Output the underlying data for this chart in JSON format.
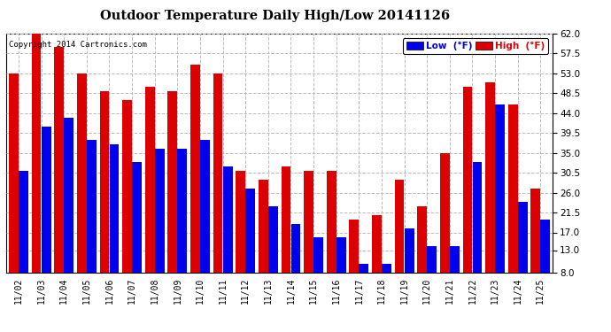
{
  "title": "Outdoor Temperature Daily High/Low 20141126",
  "copyright": "Copyright 2014 Cartronics.com",
  "legend_low": "Low  (°F)",
  "legend_high": "High  (°F)",
  "low_color": "#0000ee",
  "high_color": "#dd0000",
  "background_color": "#ffffff",
  "grid_color": "#bbbbbb",
  "ylim": [
    8.0,
    62.0
  ],
  "yticks": [
    8.0,
    13.0,
    17.0,
    21.5,
    26.0,
    30.5,
    35.0,
    39.5,
    44.0,
    48.5,
    53.0,
    57.5,
    62.0
  ],
  "dates": [
    "11/02",
    "11/03",
    "11/04",
    "11/05",
    "11/06",
    "11/07",
    "11/08",
    "11/09",
    "11/10",
    "11/11",
    "11/12",
    "11/13",
    "11/14",
    "11/15",
    "11/16",
    "11/17",
    "11/18",
    "11/19",
    "11/20",
    "11/21",
    "11/22",
    "11/23",
    "11/24",
    "11/25"
  ],
  "high": [
    53,
    62,
    59,
    53,
    49,
    47,
    50,
    49,
    55,
    53,
    31,
    29,
    32,
    31,
    31,
    20,
    21,
    29,
    23,
    35,
    50,
    51,
    46,
    27
  ],
  "low": [
    31,
    41,
    43,
    38,
    37,
    33,
    36,
    36,
    38,
    32,
    27,
    23,
    19,
    16,
    16,
    10,
    10,
    18,
    14,
    14,
    33,
    46,
    24,
    20
  ]
}
